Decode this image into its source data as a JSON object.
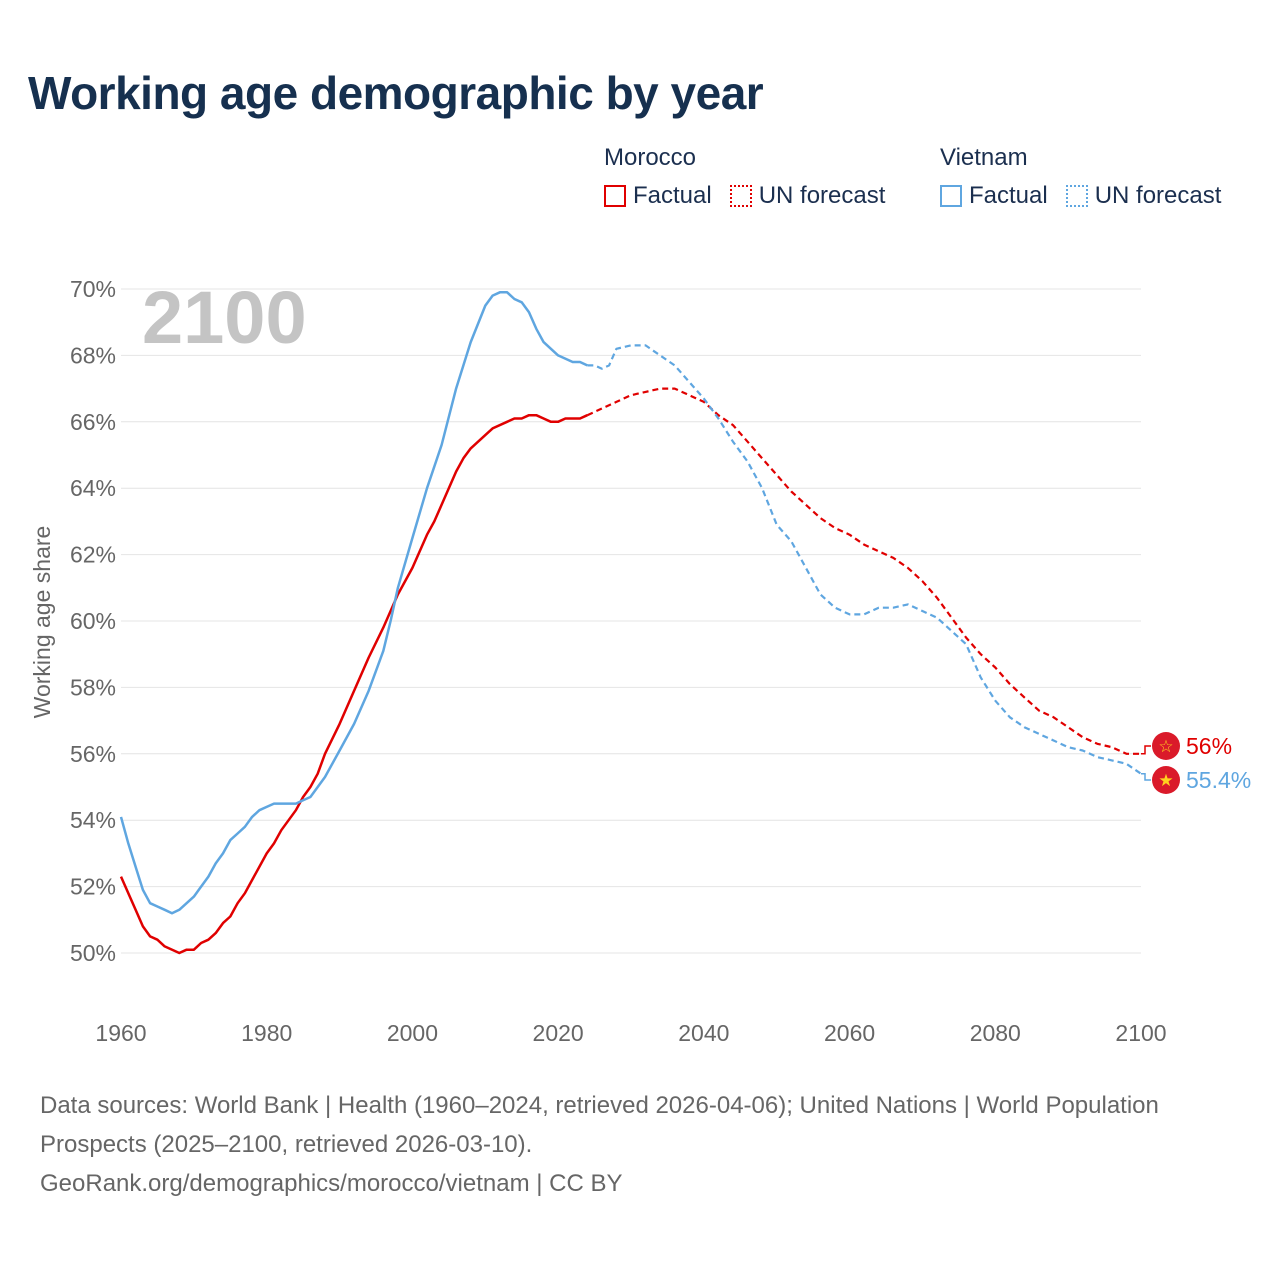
{
  "title": "Working age demographic by year",
  "legend": {
    "groups": [
      {
        "name": "Morocco",
        "color": "#e00000",
        "factual_label": "Factual",
        "forecast_label": "UN forecast"
      },
      {
        "name": "Vietnam",
        "color": "#5fa6e0",
        "factual_label": "Factual",
        "forecast_label": "UN forecast"
      }
    ]
  },
  "footer": {
    "line1": "Data sources: World Bank | Health (1960–2024, retrieved 2026-04-06); United Nations | World Population Prospects (2025–2100, retrieved 2026-03-10).",
    "line2": "GeoRank.org/demographics/morocco/vietnam | CC BY"
  },
  "chart_data": {
    "type": "line",
    "title": "Working age demographic by year",
    "watermark_year": "2100",
    "ylabel": "Working age share",
    "xlabel": "",
    "xlim": [
      1960,
      2100
    ],
    "ylim": [
      49,
      70.5
    ],
    "x_ticks": [
      1960,
      1980,
      2000,
      2020,
      2040,
      2060,
      2080,
      2100
    ],
    "y_ticks": [
      50,
      52,
      54,
      56,
      58,
      60,
      62,
      64,
      66,
      68,
      70
    ],
    "y_tick_labels": [
      "50%",
      "52%",
      "54%",
      "56%",
      "58%",
      "60%",
      "62%",
      "64%",
      "66%",
      "68%",
      "70%"
    ],
    "factual_end_year": 2024,
    "series": [
      {
        "name": "Morocco",
        "color": "#e00000",
        "end_label": "56%",
        "points": [
          [
            1960,
            52.3
          ],
          [
            1962,
            51.3
          ],
          [
            1963,
            50.8
          ],
          [
            1964,
            50.5
          ],
          [
            1965,
            50.4
          ],
          [
            1966,
            50.2
          ],
          [
            1968,
            50.0
          ],
          [
            1969,
            50.1
          ],
          [
            1970,
            50.1
          ],
          [
            1971,
            50.3
          ],
          [
            1972,
            50.4
          ],
          [
            1973,
            50.6
          ],
          [
            1974,
            50.9
          ],
          [
            1975,
            51.1
          ],
          [
            1976,
            51.5
          ],
          [
            1977,
            51.8
          ],
          [
            1978,
            52.2
          ],
          [
            1980,
            53.0
          ],
          [
            1981,
            53.3
          ],
          [
            1982,
            53.7
          ],
          [
            1984,
            54.3
          ],
          [
            1985,
            54.7
          ],
          [
            1986,
            55.0
          ],
          [
            1987,
            55.4
          ],
          [
            1988,
            56.0
          ],
          [
            1990,
            56.9
          ],
          [
            1992,
            57.9
          ],
          [
            1994,
            58.9
          ],
          [
            1996,
            59.8
          ],
          [
            1998,
            60.8
          ],
          [
            2000,
            61.6
          ],
          [
            2002,
            62.6
          ],
          [
            2003,
            63.0
          ],
          [
            2004,
            63.5
          ],
          [
            2006,
            64.5
          ],
          [
            2007,
            64.9
          ],
          [
            2008,
            65.2
          ],
          [
            2010,
            65.6
          ],
          [
            2011,
            65.8
          ],
          [
            2013,
            66.0
          ],
          [
            2014,
            66.1
          ],
          [
            2015,
            66.1
          ],
          [
            2016,
            66.2
          ],
          [
            2017,
            66.2
          ],
          [
            2018,
            66.1
          ],
          [
            2019,
            66.0
          ],
          [
            2020,
            66.0
          ],
          [
            2021,
            66.1
          ],
          [
            2022,
            66.1
          ],
          [
            2023,
            66.1
          ],
          [
            2024,
            66.2
          ],
          [
            2026,
            66.4
          ],
          [
            2028,
            66.6
          ],
          [
            2030,
            66.8
          ],
          [
            2032,
            66.9
          ],
          [
            2034,
            67.0
          ],
          [
            2036,
            67.0
          ],
          [
            2038,
            66.8
          ],
          [
            2040,
            66.6
          ],
          [
            2042,
            66.2
          ],
          [
            2044,
            65.9
          ],
          [
            2046,
            65.4
          ],
          [
            2048,
            64.9
          ],
          [
            2050,
            64.4
          ],
          [
            2052,
            63.9
          ],
          [
            2054,
            63.5
          ],
          [
            2056,
            63.1
          ],
          [
            2058,
            62.8
          ],
          [
            2060,
            62.6
          ],
          [
            2062,
            62.3
          ],
          [
            2064,
            62.1
          ],
          [
            2066,
            61.9
          ],
          [
            2068,
            61.6
          ],
          [
            2070,
            61.2
          ],
          [
            2072,
            60.7
          ],
          [
            2074,
            60.1
          ],
          [
            2076,
            59.5
          ],
          [
            2078,
            59.0
          ],
          [
            2080,
            58.6
          ],
          [
            2082,
            58.1
          ],
          [
            2084,
            57.7
          ],
          [
            2086,
            57.3
          ],
          [
            2088,
            57.1
          ],
          [
            2090,
            56.8
          ],
          [
            2092,
            56.5
          ],
          [
            2094,
            56.3
          ],
          [
            2096,
            56.2
          ],
          [
            2098,
            56.0
          ],
          [
            2100,
            56.0
          ]
        ]
      },
      {
        "name": "Vietnam",
        "color": "#5fa6e0",
        "end_label": "55.4%",
        "points": [
          [
            1960,
            54.1
          ],
          [
            1961,
            53.3
          ],
          [
            1962,
            52.6
          ],
          [
            1963,
            51.9
          ],
          [
            1964,
            51.5
          ],
          [
            1965,
            51.4
          ],
          [
            1966,
            51.3
          ],
          [
            1967,
            51.2
          ],
          [
            1968,
            51.3
          ],
          [
            1969,
            51.5
          ],
          [
            1970,
            51.7
          ],
          [
            1971,
            52.0
          ],
          [
            1972,
            52.3
          ],
          [
            1973,
            52.7
          ],
          [
            1974,
            53.0
          ],
          [
            1975,
            53.4
          ],
          [
            1976,
            53.6
          ],
          [
            1977,
            53.8
          ],
          [
            1978,
            54.1
          ],
          [
            1979,
            54.3
          ],
          [
            1980,
            54.4
          ],
          [
            1981,
            54.5
          ],
          [
            1982,
            54.5
          ],
          [
            1984,
            54.5
          ],
          [
            1985,
            54.6
          ],
          [
            1986,
            54.7
          ],
          [
            1987,
            55.0
          ],
          [
            1988,
            55.3
          ],
          [
            1990,
            56.1
          ],
          [
            1992,
            56.9
          ],
          [
            1994,
            57.9
          ],
          [
            1996,
            59.1
          ],
          [
            1997,
            60.0
          ],
          [
            1998,
            61.0
          ],
          [
            2000,
            62.5
          ],
          [
            2002,
            64.0
          ],
          [
            2004,
            65.3
          ],
          [
            2006,
            67.0
          ],
          [
            2008,
            68.4
          ],
          [
            2010,
            69.5
          ],
          [
            2011,
            69.8
          ],
          [
            2012,
            69.9
          ],
          [
            2013,
            69.9
          ],
          [
            2014,
            69.7
          ],
          [
            2015,
            69.6
          ],
          [
            2016,
            69.3
          ],
          [
            2017,
            68.8
          ],
          [
            2018,
            68.4
          ],
          [
            2019,
            68.2
          ],
          [
            2020,
            68.0
          ],
          [
            2022,
            67.8
          ],
          [
            2023,
            67.8
          ],
          [
            2024,
            67.7
          ],
          [
            2025,
            67.7
          ],
          [
            2026,
            67.6
          ],
          [
            2027,
            67.7
          ],
          [
            2028,
            68.2
          ],
          [
            2030,
            68.3
          ],
          [
            2032,
            68.3
          ],
          [
            2034,
            68.0
          ],
          [
            2036,
            67.7
          ],
          [
            2038,
            67.2
          ],
          [
            2040,
            66.7
          ],
          [
            2042,
            66.1
          ],
          [
            2044,
            65.4
          ],
          [
            2046,
            64.8
          ],
          [
            2048,
            64.0
          ],
          [
            2050,
            62.9
          ],
          [
            2052,
            62.4
          ],
          [
            2054,
            61.6
          ],
          [
            2056,
            60.8
          ],
          [
            2058,
            60.4
          ],
          [
            2060,
            60.2
          ],
          [
            2062,
            60.2
          ],
          [
            2064,
            60.4
          ],
          [
            2066,
            60.4
          ],
          [
            2068,
            60.5
          ],
          [
            2070,
            60.3
          ],
          [
            2072,
            60.1
          ],
          [
            2074,
            59.7
          ],
          [
            2076,
            59.3
          ],
          [
            2078,
            58.3
          ],
          [
            2080,
            57.6
          ],
          [
            2082,
            57.1
          ],
          [
            2084,
            56.8
          ],
          [
            2086,
            56.6
          ],
          [
            2088,
            56.4
          ],
          [
            2090,
            56.2
          ],
          [
            2092,
            56.1
          ],
          [
            2094,
            55.9
          ],
          [
            2096,
            55.8
          ],
          [
            2098,
            55.7
          ],
          [
            2100,
            55.4
          ]
        ]
      }
    ]
  }
}
